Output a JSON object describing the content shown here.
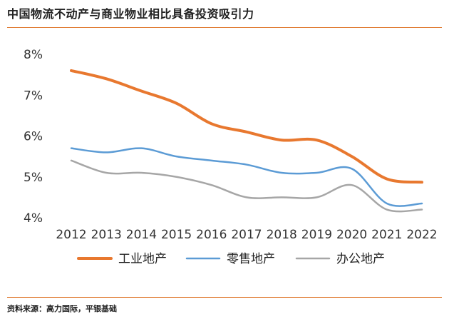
{
  "title": "中国物流不动产与商业物业相比具备投资吸引力",
  "source": "资料来源：高力国际，平银基础",
  "chart_data": {
    "type": "line",
    "title": "中国物流不动产与商业物业相比具备投资吸引力",
    "x": [
      "2012",
      "2013",
      "2014",
      "2015",
      "2016",
      "2017",
      "2018",
      "2019",
      "2020",
      "2021",
      "2022"
    ],
    "ylim": [
      4,
      8
    ],
    "yticks": [
      "4%",
      "5%",
      "6%",
      "7%",
      "8%"
    ],
    "ytick_values": [
      4,
      5,
      6,
      7,
      8
    ],
    "grid": false,
    "legend_position": "bottom",
    "series": [
      {
        "name": "工业地产",
        "color": "#e8782f",
        "values": [
          7.6,
          7.4,
          7.1,
          6.8,
          6.3,
          6.1,
          5.9,
          5.9,
          5.5,
          4.95,
          4.87
        ]
      },
      {
        "name": "零售地产",
        "color": "#5b9bd5",
        "values": [
          5.7,
          5.6,
          5.7,
          5.5,
          5.4,
          5.3,
          5.1,
          5.1,
          5.2,
          4.35,
          4.35
        ]
      },
      {
        "name": "办公地产",
        "color": "#a6a6a6",
        "values": [
          5.4,
          5.1,
          5.1,
          5.0,
          4.8,
          4.5,
          4.5,
          4.5,
          4.8,
          4.2,
          4.2
        ]
      }
    ]
  }
}
